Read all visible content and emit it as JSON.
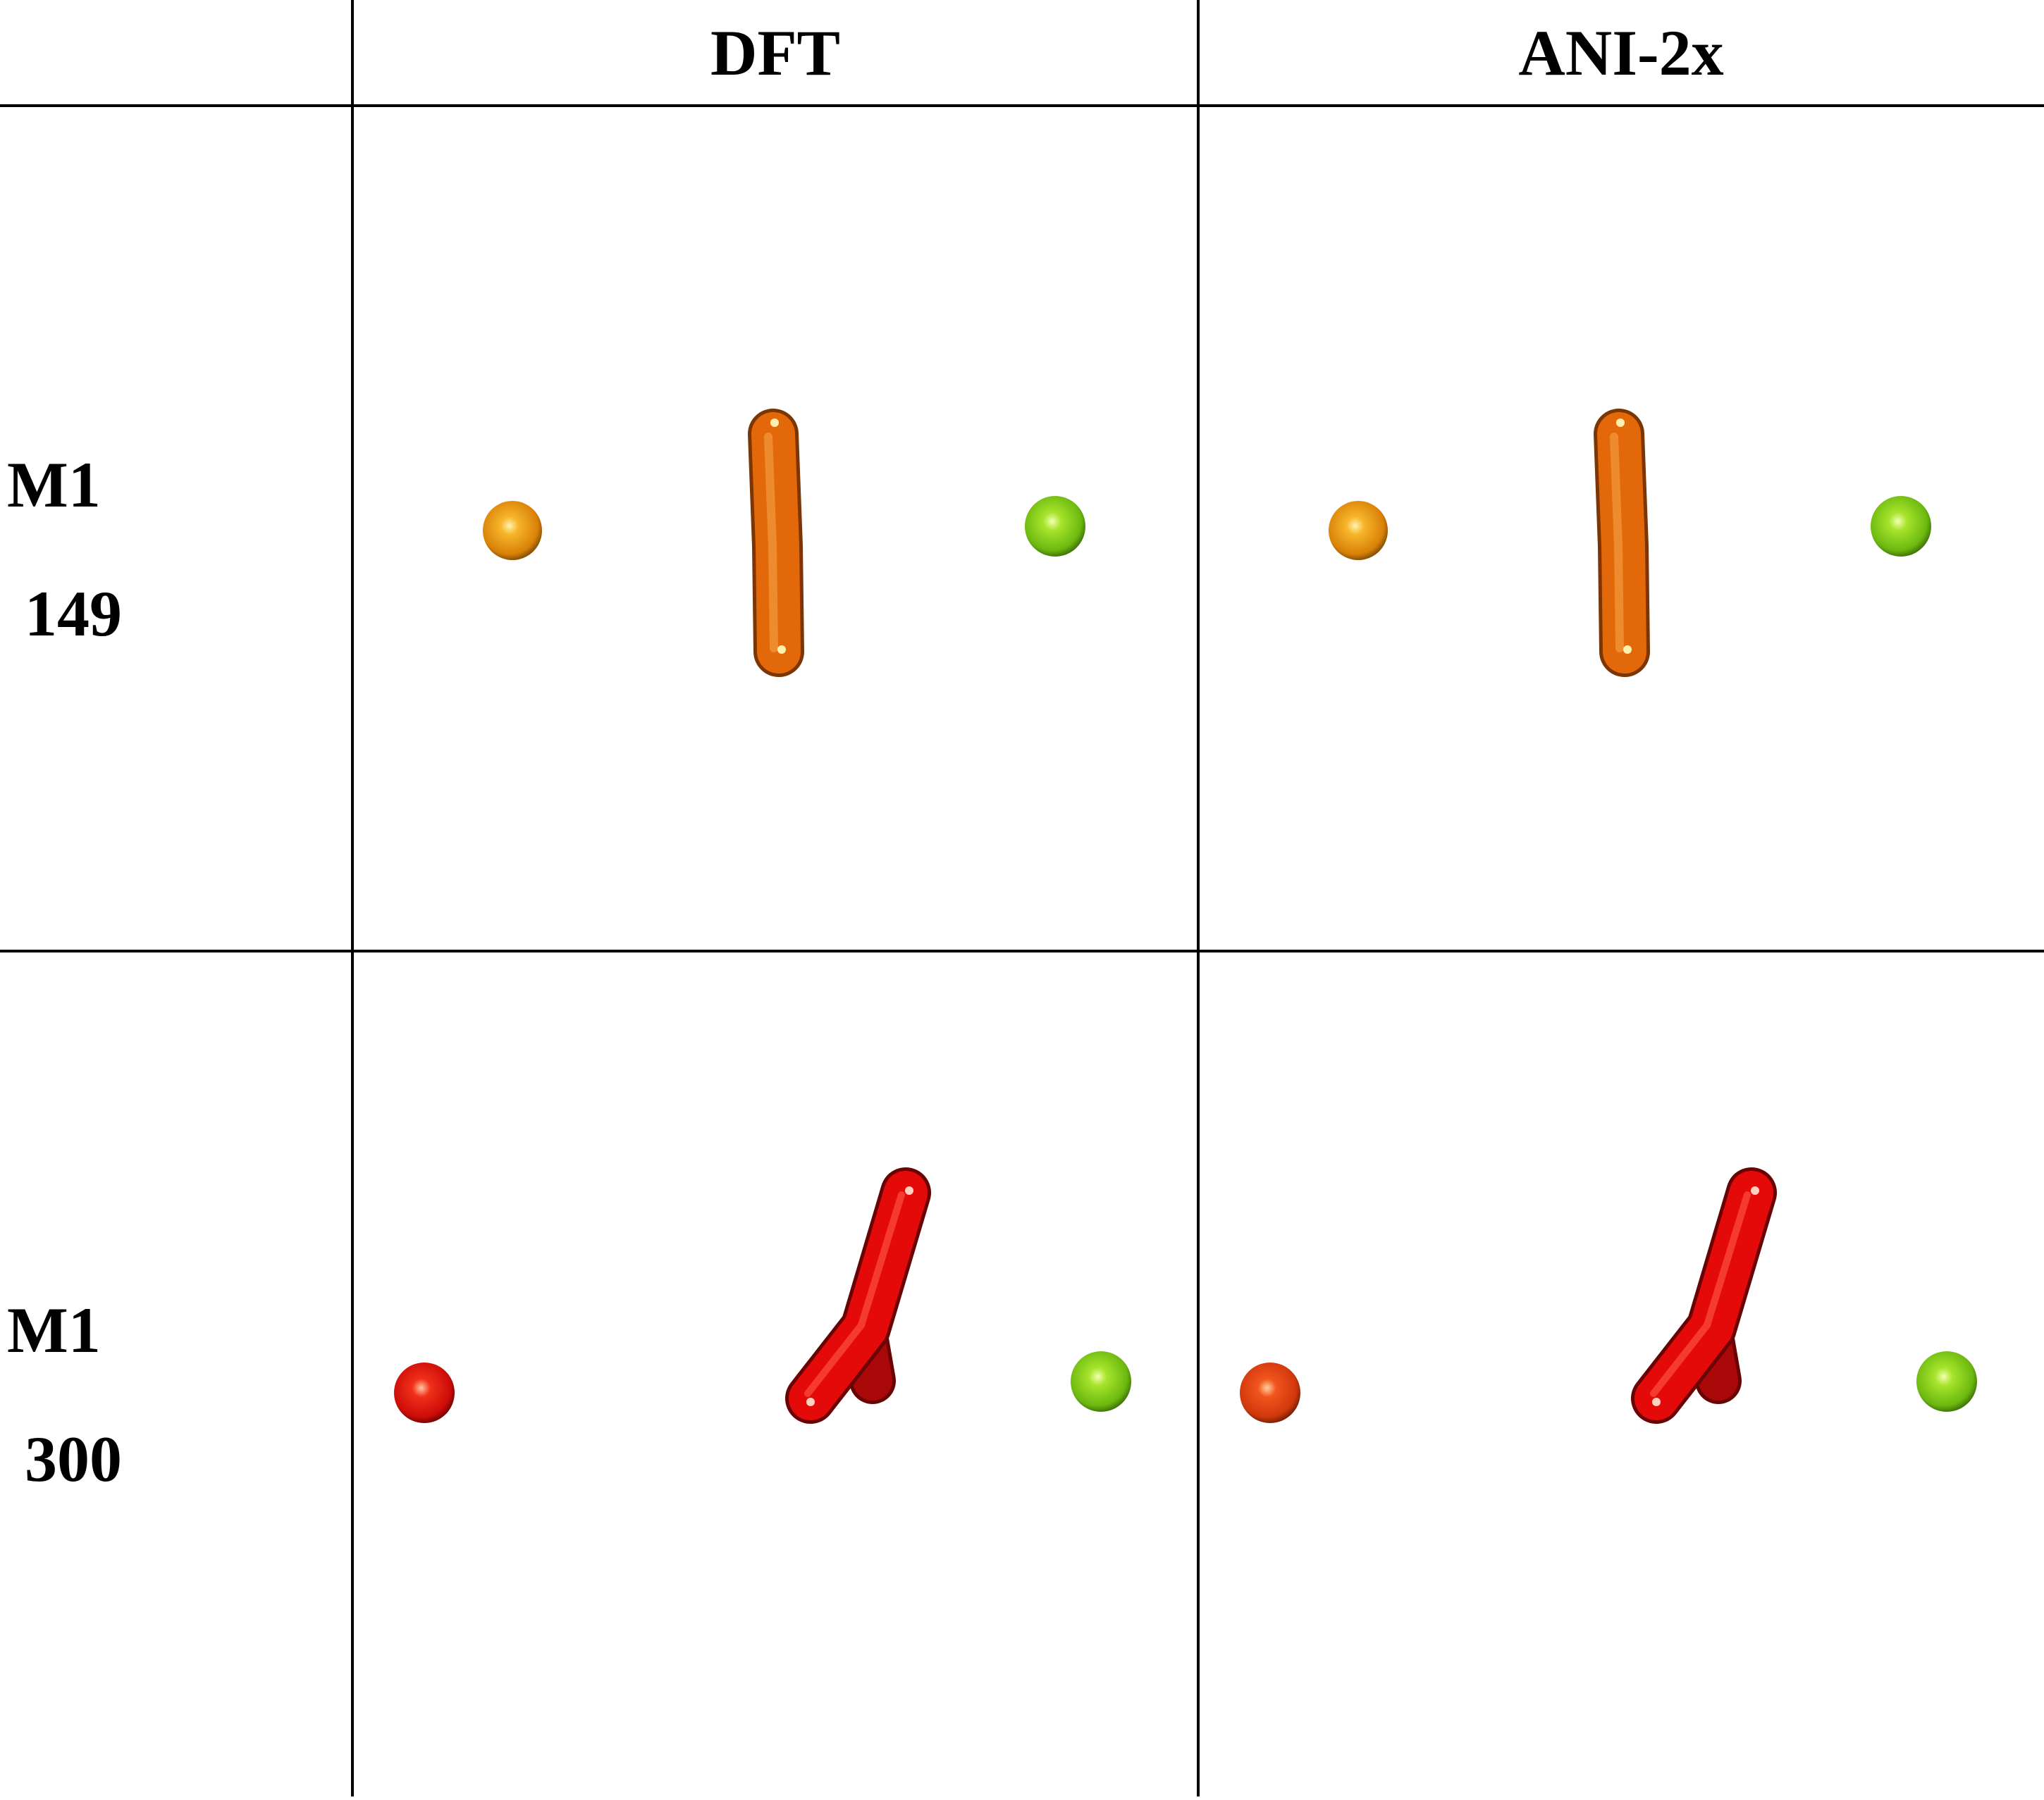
{
  "columns": [
    {
      "label": "DFT"
    },
    {
      "label": "ANI-2x"
    }
  ],
  "rows": [
    {
      "name": "M1",
      "value": "149"
    },
    {
      "name": "M1",
      "value": "300"
    }
  ],
  "colors": {
    "orange_bond": "#e2680a",
    "orange_atom": "#ef9a10",
    "red_bond": "#e50a0a",
    "red_atom": "#e11a0a",
    "red_orange_atom": "#e8420f",
    "green_atom": "#86d41a",
    "grid_line": "#000000"
  }
}
